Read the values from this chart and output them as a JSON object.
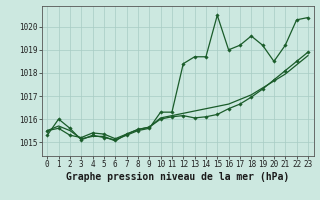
{
  "xlabel": "Graphe pression niveau de la mer (hPa)",
  "background_color": "#cce8e0",
  "grid_color": "#a8ccc4",
  "line_color": "#1a5c2a",
  "ylim": [
    1014.4,
    1020.9
  ],
  "xlim": [
    -0.5,
    23.5
  ],
  "yticks": [
    1015,
    1016,
    1017,
    1018,
    1019,
    1020
  ],
  "xticks": [
    0,
    1,
    2,
    3,
    4,
    5,
    6,
    7,
    8,
    9,
    10,
    11,
    12,
    13,
    14,
    15,
    16,
    17,
    18,
    19,
    20,
    21,
    22,
    23
  ],
  "series1": [
    1015.3,
    1016.0,
    1015.6,
    1015.1,
    1015.3,
    1015.2,
    1015.1,
    1015.3,
    1015.5,
    1015.6,
    1016.3,
    1016.3,
    1018.4,
    1018.7,
    1018.7,
    1020.5,
    1019.0,
    1019.2,
    1019.6,
    1019.2,
    1018.5,
    1019.2,
    1020.3,
    1020.4
  ],
  "series2": [
    1015.5,
    1015.6,
    1015.3,
    1015.2,
    1015.4,
    1015.35,
    1015.15,
    1015.35,
    1015.55,
    1015.65,
    1016.0,
    1016.1,
    1016.15,
    1016.05,
    1016.1,
    1016.2,
    1016.45,
    1016.65,
    1016.95,
    1017.3,
    1017.7,
    1018.1,
    1018.5,
    1018.9
  ],
  "series3": [
    1015.5,
    1015.7,
    1015.5,
    1015.15,
    1015.25,
    1015.25,
    1015.05,
    1015.35,
    1015.55,
    1015.65,
    1016.05,
    1016.15,
    1016.25,
    1016.35,
    1016.45,
    1016.55,
    1016.65,
    1016.85,
    1017.05,
    1017.35,
    1017.65,
    1017.95,
    1018.35,
    1018.75
  ],
  "marker_size": 1.8,
  "linewidth": 0.9,
  "xlabel_fontsize": 7,
  "tick_fontsize": 5.5
}
